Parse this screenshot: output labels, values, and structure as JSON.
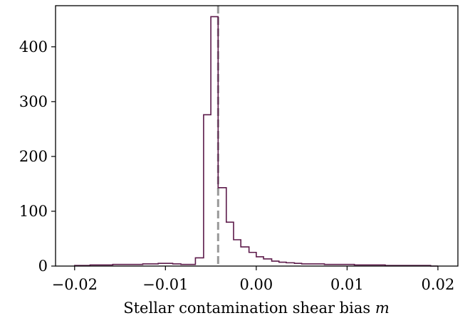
{
  "chart_data": {
    "type": "histogram",
    "xlabel": "Stellar contamination shear bias",
    "xlabel_symbol": "m",
    "ylabel": "",
    "title": "",
    "xlim": [
      -0.0221,
      0.0222
    ],
    "ylim": [
      0,
      475
    ],
    "xticks": [
      -0.02,
      -0.01,
      0.0,
      0.01,
      0.02
    ],
    "xtick_labels": [
      "−0.02",
      "−0.01",
      "0.00",
      "0.01",
      "0.02"
    ],
    "yticks": [
      0,
      100,
      200,
      300,
      400
    ],
    "ytick_labels": [
      "0",
      "100",
      "200",
      "300",
      "400"
    ],
    "bin_edges": [
      -0.02,
      -0.0192,
      -0.0183,
      -0.0175,
      -0.0167,
      -0.0158,
      -0.015,
      -0.0142,
      -0.0133,
      -0.0125,
      -0.0117,
      -0.0108,
      -0.01,
      -0.0092,
      -0.0083,
      -0.0075,
      -0.0067,
      -0.0058,
      -0.005,
      -0.0042,
      -0.0033,
      -0.0025,
      -0.0017,
      -0.0008,
      0.0,
      0.0008,
      0.0017,
      0.0025,
      0.0033,
      0.0042,
      0.005,
      0.0058,
      0.0067,
      0.0075,
      0.0083,
      0.0092,
      0.01,
      0.0108,
      0.0117,
      0.0125,
      0.0133,
      0.0142,
      0.015,
      0.0158,
      0.0167,
      0.0175,
      0.0183,
      0.0192,
      0.02
    ],
    "counts": [
      1,
      1,
      2,
      2,
      2,
      3,
      3,
      3,
      3,
      4,
      4,
      5,
      5,
      4,
      3,
      3,
      15,
      276,
      455,
      143,
      80,
      48,
      35,
      25,
      17,
      13,
      9,
      7,
      6,
      5,
      4,
      4,
      4,
      3,
      3,
      3,
      3,
      2,
      2,
      2,
      2,
      1,
      1,
      1,
      1,
      1,
      1,
      0
    ],
    "reference_line": -0.0042,
    "colors": {
      "histogram": "#5c1a4a",
      "reference_line": "#999999",
      "axes": "#000000"
    }
  }
}
